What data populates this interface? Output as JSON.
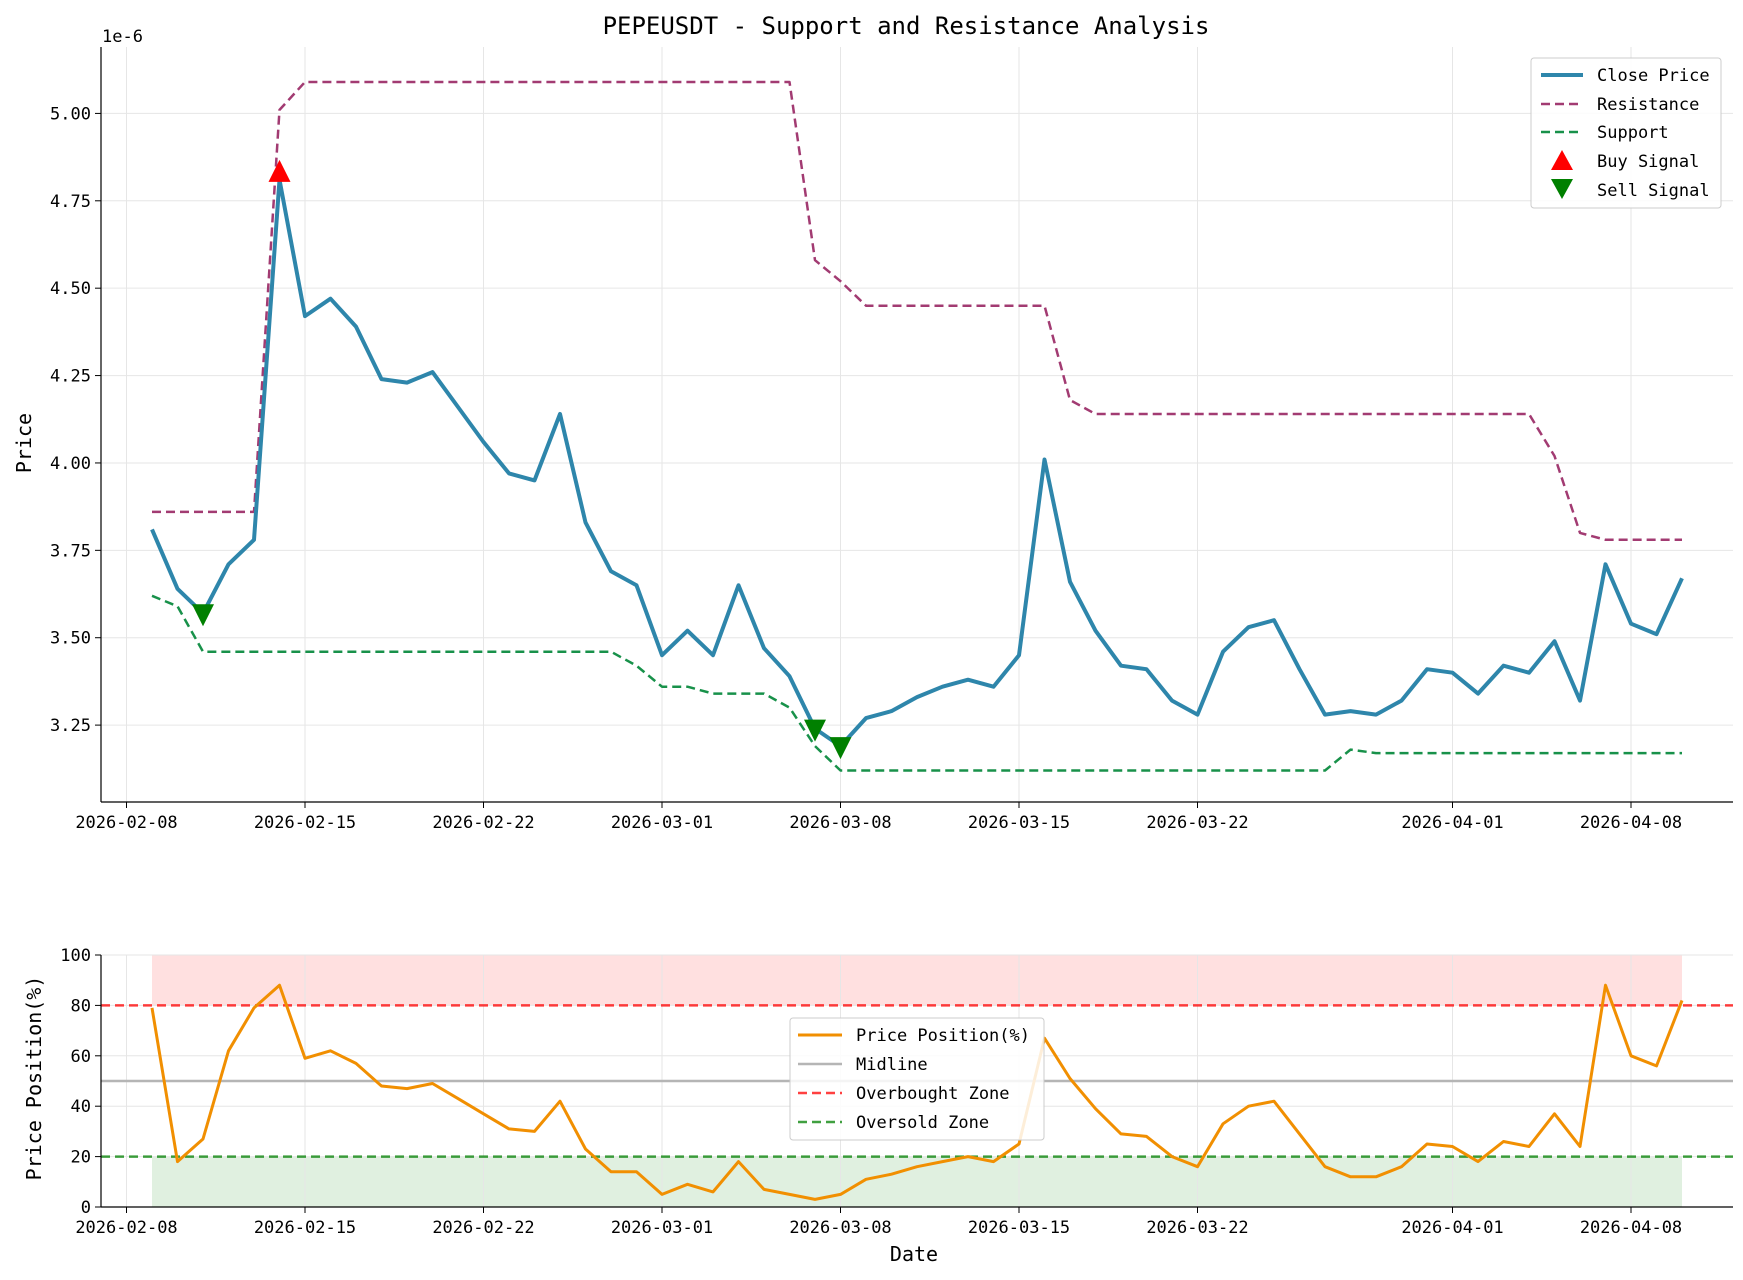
{
  "chart_data": [
    {
      "type": "line",
      "title": "PEPEUSDT - Support and Resistance Analysis",
      "ylabel": "Price",
      "xlabel": "",
      "offset_text": "1e-6",
      "y_scale_note": "values in units of 1e-6",
      "x_start": "2026-02-09",
      "x_end": "2026-04-10",
      "xlim": [
        "2026-02-07",
        "2026-04-12"
      ],
      "ylim": [
        3.03,
        5.19
      ],
      "x_ticks": [
        "2026-02-08",
        "2026-02-15",
        "2026-02-22",
        "2026-03-01",
        "2026-03-08",
        "2026-03-15",
        "2026-03-22",
        "2026-04-01",
        "2026-04-08"
      ],
      "y_ticks": [
        "3.25",
        "3.50",
        "3.75",
        "4.00",
        "4.25",
        "4.50",
        "4.75",
        "5.00"
      ],
      "grid": true,
      "legend_position": "top-right",
      "series": [
        {
          "name": "Close Price",
          "color": "#2e86ab",
          "style": "solid",
          "values": [
            3.81,
            3.64,
            3.57,
            3.71,
            3.78,
            4.81,
            4.42,
            4.47,
            4.39,
            4.24,
            4.23,
            4.26,
            4.16,
            4.06,
            3.97,
            3.95,
            4.14,
            3.83,
            3.69,
            3.65,
            3.45,
            3.52,
            3.45,
            3.65,
            3.47,
            3.39,
            3.24,
            3.19,
            3.27,
            3.29,
            3.33,
            3.36,
            3.38,
            3.36,
            3.45,
            4.01,
            3.66,
            3.52,
            3.42,
            3.41,
            3.32,
            3.28,
            3.46,
            3.53,
            3.55,
            3.41,
            3.28,
            3.29,
            3.28,
            3.32,
            3.41,
            3.4,
            3.34,
            3.42,
            3.4,
            3.49,
            3.32,
            3.71,
            3.54,
            3.51,
            3.67
          ]
        },
        {
          "name": "Resistance",
          "color": "#a23b72",
          "style": "dashed",
          "values": [
            3.86,
            3.86,
            3.86,
            3.86,
            3.86,
            5.01,
            5.09,
            5.09,
            5.09,
            5.09,
            5.09,
            5.09,
            5.09,
            5.09,
            5.09,
            5.09,
            5.09,
            5.09,
            5.09,
            5.09,
            5.09,
            5.09,
            5.09,
            5.09,
            5.09,
            5.09,
            4.58,
            4.52,
            4.45,
            4.45,
            4.45,
            4.45,
            4.45,
            4.45,
            4.45,
            4.45,
            4.18,
            4.14,
            4.14,
            4.14,
            4.14,
            4.14,
            4.14,
            4.14,
            4.14,
            4.14,
            4.14,
            4.14,
            4.14,
            4.14,
            4.14,
            4.14,
            4.14,
            4.14,
            4.14,
            4.02,
            3.8,
            3.78,
            3.78,
            3.78,
            3.78
          ]
        },
        {
          "name": "Support",
          "color": "#18914a",
          "style": "dashed",
          "values": [
            3.62,
            3.59,
            3.46,
            3.46,
            3.46,
            3.46,
            3.46,
            3.46,
            3.46,
            3.46,
            3.46,
            3.46,
            3.46,
            3.46,
            3.46,
            3.46,
            3.46,
            3.46,
            3.46,
            3.42,
            3.36,
            3.36,
            3.34,
            3.34,
            3.34,
            3.3,
            3.19,
            3.12,
            3.12,
            3.12,
            3.12,
            3.12,
            3.12,
            3.12,
            3.12,
            3.12,
            3.12,
            3.12,
            3.12,
            3.12,
            3.12,
            3.12,
            3.12,
            3.12,
            3.12,
            3.12,
            3.12,
            3.18,
            3.17,
            3.17,
            3.17,
            3.17,
            3.17,
            3.17,
            3.17,
            3.17,
            3.17,
            3.17,
            3.17,
            3.17,
            3.17
          ]
        }
      ],
      "markers": [
        {
          "name": "Buy Signal",
          "color": "#ff0000",
          "shape": "triangle-up",
          "points": [
            {
              "date": "2026-02-14",
              "value": 4.83
            }
          ]
        },
        {
          "name": "Sell Signal",
          "color": "#008000",
          "shape": "triangle-down",
          "points": [
            {
              "date": "2026-02-11",
              "value": 3.57
            },
            {
              "date": "2026-03-07",
              "value": 3.24
            },
            {
              "date": "2026-03-08",
              "value": 3.19
            }
          ]
        }
      ]
    },
    {
      "type": "line",
      "title": "",
      "ylabel": "Price Position(%)",
      "xlabel": "Date",
      "x_start": "2026-02-09",
      "x_end": "2026-04-10",
      "xlim": [
        "2026-02-07",
        "2026-04-12"
      ],
      "ylim": [
        0,
        100
      ],
      "x_ticks": [
        "2026-02-08",
        "2026-02-15",
        "2026-02-22",
        "2026-03-01",
        "2026-03-08",
        "2026-03-15",
        "2026-03-22",
        "2026-04-01",
        "2026-04-08"
      ],
      "y_ticks": [
        "0",
        "20",
        "40",
        "60",
        "80",
        "100"
      ],
      "grid": true,
      "legend_position": "center",
      "bands": [
        {
          "from": 80,
          "to": 100,
          "color": "#ff0000",
          "opacity": 0.12
        },
        {
          "from": 0,
          "to": 20,
          "color": "#008000",
          "opacity": 0.12
        }
      ],
      "series": [
        {
          "name": "Price Position(%)",
          "color": "#f18f01",
          "style": "solid",
          "values": [
            79,
            18,
            27,
            62,
            79,
            88,
            59,
            62,
            57,
            48,
            47,
            49,
            43,
            37,
            31,
            30,
            42,
            23,
            14,
            14,
            5,
            9,
            6,
            18,
            7,
            5,
            3,
            5,
            11,
            13,
            16,
            18,
            20,
            18,
            25,
            67,
            51,
            39,
            29,
            28,
            20,
            16,
            33,
            40,
            42,
            29,
            16,
            12,
            12,
            16,
            25,
            24,
            18,
            26,
            24,
            37,
            24,
            88,
            60,
            56,
            82
          ]
        }
      ],
      "reference_lines": [
        {
          "name": "Midline",
          "value": 50,
          "color": "#b5b5b5",
          "style": "solid"
        },
        {
          "name": "Overbought Zone",
          "value": 80,
          "color": "#ff0000",
          "style": "dashed"
        },
        {
          "name": "Oversold Zone",
          "value": 20,
          "color": "#008000",
          "style": "dashed"
        }
      ]
    }
  ]
}
